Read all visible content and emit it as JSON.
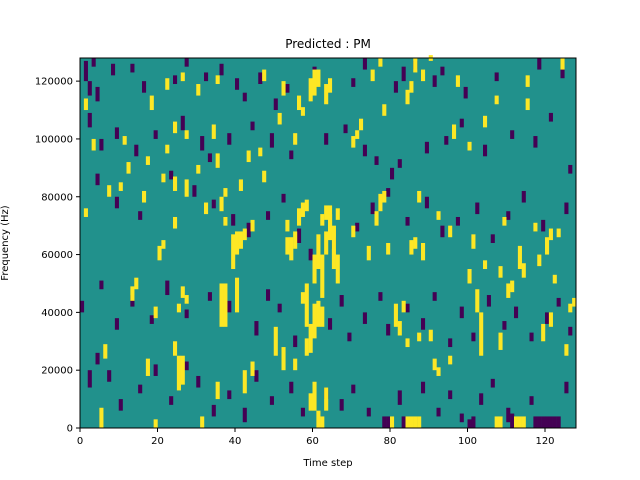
{
  "chart_data": {
    "type": "heatmap",
    "title": "Predicted : PM",
    "xlabel": "Time step",
    "ylabel": "Frequency (Hz)",
    "xlim": [
      0,
      128
    ],
    "ylim": [
      0,
      128000
    ],
    "xticks": [
      0,
      20,
      40,
      60,
      80,
      100,
      120
    ],
    "yticks": [
      0,
      20000,
      40000,
      60000,
      80000,
      100000,
      120000
    ],
    "grid_shape": [
      128,
      128
    ],
    "cell_size_hz": 1000,
    "colormap": "viridis",
    "value_range": [
      -1,
      1
    ],
    "colors": {
      "low": "#440154",
      "mid": "#21918c",
      "high": "#fde725"
    },
    "background_value": 0,
    "cells_high": [
      [
        5,
        0,
        7
      ],
      [
        19,
        0,
        3
      ],
      [
        31,
        0,
        4
      ],
      [
        61,
        0,
        6
      ],
      [
        62,
        0,
        4
      ],
      [
        80,
        0,
        4
      ],
      [
        84,
        0,
        4
      ],
      [
        85,
        0,
        4
      ],
      [
        86,
        0,
        4
      ],
      [
        87,
        0,
        4
      ],
      [
        107,
        0,
        4
      ],
      [
        108,
        0,
        4
      ],
      [
        112,
        0,
        4
      ],
      [
        113,
        0,
        4
      ],
      [
        114,
        0,
        4
      ],
      [
        59,
        6,
        6
      ],
      [
        60,
        6,
        10
      ],
      [
        63,
        6,
        8
      ],
      [
        35,
        10,
        6
      ],
      [
        42,
        12,
        8
      ],
      [
        25,
        13,
        12
      ],
      [
        26,
        15,
        10
      ],
      [
        52,
        20,
        8
      ],
      [
        55,
        20,
        4
      ],
      [
        44,
        18,
        5
      ],
      [
        6,
        24,
        5
      ],
      [
        17,
        18,
        6
      ],
      [
        50,
        25,
        10
      ],
      [
        58,
        25,
        6
      ],
      [
        59,
        26,
        10
      ],
      [
        60,
        31,
        12
      ],
      [
        61,
        35,
        9
      ],
      [
        62,
        35,
        7
      ],
      [
        87,
        30,
        3
      ],
      [
        103,
        25,
        15
      ],
      [
        108,
        27,
        6
      ],
      [
        125,
        25,
        4
      ],
      [
        126,
        40,
        3
      ],
      [
        127,
        42,
        3
      ],
      [
        36,
        35,
        15
      ],
      [
        37,
        35,
        15
      ],
      [
        40,
        40,
        12
      ],
      [
        24,
        25,
        5
      ],
      [
        25,
        40,
        3
      ],
      [
        26,
        45,
        4
      ],
      [
        27,
        43,
        3
      ],
      [
        57,
        43,
        4
      ],
      [
        58,
        35,
        15
      ],
      [
        60,
        50,
        10
      ],
      [
        61,
        55,
        12
      ],
      [
        62,
        45,
        15
      ],
      [
        63,
        60,
        8
      ],
      [
        64,
        65,
        12
      ],
      [
        65,
        55,
        15
      ],
      [
        66,
        50,
        10
      ],
      [
        39,
        55,
        12
      ],
      [
        40,
        60,
        8
      ],
      [
        41,
        62,
        6
      ],
      [
        53,
        60,
        6
      ],
      [
        54,
        58,
        8
      ],
      [
        55,
        62,
        6
      ],
      [
        42,
        65,
        4
      ],
      [
        102,
        40,
        8
      ],
      [
        110,
        45,
        5
      ],
      [
        113,
        55,
        8
      ],
      [
        114,
        52,
        5
      ],
      [
        111,
        47,
        4
      ],
      [
        119,
        30,
        6
      ],
      [
        121,
        35,
        5
      ],
      [
        81,
        35,
        8
      ],
      [
        82,
        32,
        5
      ],
      [
        83,
        40,
        4
      ],
      [
        84,
        28,
        3
      ],
      [
        90,
        30,
        4
      ],
      [
        91,
        20,
        4
      ],
      [
        92,
        18,
        3
      ],
      [
        95,
        22,
        3
      ],
      [
        100,
        50,
        5
      ],
      [
        104,
        55,
        3
      ],
      [
        108,
        52,
        4
      ],
      [
        120,
        60,
        6
      ],
      [
        121,
        65,
        4
      ],
      [
        122,
        50,
        3
      ],
      [
        62,
        70,
        4
      ],
      [
        63,
        72,
        5
      ],
      [
        64,
        68,
        6
      ],
      [
        76,
        70,
        5
      ],
      [
        77,
        75,
        6
      ],
      [
        78,
        78,
        4
      ],
      [
        87,
        78,
        4
      ],
      [
        92,
        72,
        3
      ],
      [
        109,
        70,
        3
      ],
      [
        117,
        68,
        3
      ],
      [
        7,
        80,
        4
      ],
      [
        10,
        82,
        3
      ],
      [
        16,
        78,
        4
      ],
      [
        21,
        85,
        3
      ],
      [
        24,
        82,
        5
      ],
      [
        27,
        80,
        6
      ],
      [
        36,
        75,
        5
      ],
      [
        37,
        80,
        3
      ],
      [
        41,
        82,
        4
      ],
      [
        47,
        85,
        4
      ],
      [
        53,
        68,
        4
      ],
      [
        56,
        70,
        6
      ],
      [
        57,
        73,
        5
      ],
      [
        58,
        75,
        4
      ],
      [
        85,
        60,
        5
      ],
      [
        86,
        62,
        4
      ],
      [
        88,
        58,
        6
      ],
      [
        3,
        96,
        4
      ],
      [
        11,
        98,
        3
      ],
      [
        24,
        102,
        4
      ],
      [
        27,
        100,
        3
      ],
      [
        34,
        100,
        5
      ],
      [
        51,
        105,
        4
      ],
      [
        56,
        110,
        5
      ],
      [
        57,
        108,
        3
      ],
      [
        59,
        113,
        8
      ],
      [
        60,
        115,
        9
      ],
      [
        61,
        118,
        6
      ],
      [
        63,
        112,
        7
      ],
      [
        64,
        116,
        5
      ],
      [
        70,
        97,
        4
      ],
      [
        71,
        100,
        3
      ],
      [
        72,
        103,
        4
      ],
      [
        78,
        108,
        4
      ],
      [
        84,
        112,
        5
      ],
      [
        85,
        116,
        4
      ],
      [
        88,
        120,
        4
      ],
      [
        96,
        100,
        5
      ],
      [
        100,
        96,
        3
      ],
      [
        104,
        104,
        4
      ],
      [
        115,
        110,
        4
      ],
      [
        1,
        110,
        4
      ],
      [
        18,
        110,
        5
      ],
      [
        22,
        117,
        4
      ],
      [
        26,
        120,
        3
      ],
      [
        30,
        115,
        4
      ],
      [
        35,
        119,
        3
      ],
      [
        47,
        120,
        4
      ],
      [
        52,
        115,
        5
      ],
      [
        75,
        120,
        4
      ],
      [
        77,
        125,
        3
      ],
      [
        86,
        123,
        5
      ],
      [
        90,
        127,
        2
      ],
      [
        97,
        118,
        4
      ],
      [
        107,
        112,
        3
      ],
      [
        115,
        118,
        4
      ],
      [
        124,
        124,
        4
      ],
      [
        1,
        73,
        3
      ],
      [
        12,
        88,
        4
      ],
      [
        17,
        91,
        3
      ],
      [
        22,
        95,
        3
      ],
      [
        30,
        88,
        3
      ],
      [
        35,
        90,
        5
      ],
      [
        43,
        92,
        4
      ],
      [
        46,
        94,
        3
      ],
      [
        55,
        98,
        4
      ],
      [
        13,
        44,
        5
      ],
      [
        14,
        48,
        4
      ],
      [
        19,
        38,
        4
      ],
      [
        20,
        58,
        5
      ],
      [
        21,
        62,
        3
      ],
      [
        24,
        69,
        4
      ],
      [
        32,
        74,
        4
      ],
      [
        37,
        70,
        3
      ],
      [
        44,
        68,
        4
      ],
      [
        66,
        72,
        4
      ],
      [
        70,
        66,
        4
      ],
      [
        74,
        58,
        5
      ],
      [
        79,
        60,
        4
      ],
      [
        95,
        66,
        4
      ],
      [
        101,
        62,
        5
      ],
      [
        118,
        56,
        4
      ],
      [
        123,
        66,
        3
      ]
    ],
    "cells_low": [
      [
        1,
        120,
        7
      ],
      [
        2,
        115,
        5
      ],
      [
        3,
        125,
        3
      ],
      [
        4,
        113,
        5
      ],
      [
        8,
        122,
        4
      ],
      [
        13,
        123,
        3
      ],
      [
        16,
        116,
        4
      ],
      [
        24,
        119,
        3
      ],
      [
        27,
        125,
        3
      ],
      [
        32,
        120,
        3
      ],
      [
        36,
        122,
        4
      ],
      [
        40,
        117,
        4
      ],
      [
        42,
        113,
        3
      ],
      [
        46,
        119,
        4
      ],
      [
        50,
        110,
        4
      ],
      [
        53,
        116,
        3
      ],
      [
        60,
        121,
        4
      ],
      [
        70,
        118,
        3
      ],
      [
        73,
        124,
        4
      ],
      [
        81,
        116,
        4
      ],
      [
        83,
        120,
        5
      ],
      [
        86,
        124,
        3
      ],
      [
        91,
        118,
        4
      ],
      [
        93,
        122,
        3
      ],
      [
        99,
        114,
        4
      ],
      [
        107,
        120,
        3
      ],
      [
        118,
        124,
        4
      ],
      [
        124,
        121,
        3
      ],
      [
        2,
        104,
        5
      ],
      [
        5,
        96,
        4
      ],
      [
        9,
        100,
        4
      ],
      [
        14,
        94,
        4
      ],
      [
        19,
        100,
        3
      ],
      [
        26,
        103,
        5
      ],
      [
        31,
        96,
        5
      ],
      [
        33,
        92,
        3
      ],
      [
        38,
        98,
        4
      ],
      [
        44,
        103,
        3
      ],
      [
        49,
        97,
        5
      ],
      [
        54,
        93,
        3
      ],
      [
        63,
        98,
        4
      ],
      [
        68,
        102,
        3
      ],
      [
        73,
        94,
        4
      ],
      [
        76,
        91,
        3
      ],
      [
        80,
        86,
        4
      ],
      [
        82,
        90,
        3
      ],
      [
        89,
        95,
        4
      ],
      [
        94,
        98,
        3
      ],
      [
        98,
        104,
        3
      ],
      [
        104,
        94,
        4
      ],
      [
        111,
        100,
        3
      ],
      [
        117,
        97,
        4
      ],
      [
        121,
        106,
        3
      ],
      [
        126,
        88,
        3
      ],
      [
        4,
        84,
        4
      ],
      [
        9,
        76,
        4
      ],
      [
        15,
        72,
        3
      ],
      [
        23,
        86,
        3
      ],
      [
        29,
        80,
        4
      ],
      [
        34,
        76,
        3
      ],
      [
        39,
        70,
        4
      ],
      [
        43,
        66,
        5
      ],
      [
        48,
        72,
        3
      ],
      [
        52,
        78,
        3
      ],
      [
        56,
        64,
        5
      ],
      [
        59,
        58,
        4
      ],
      [
        65,
        62,
        4
      ],
      [
        71,
        68,
        3
      ],
      [
        75,
        74,
        4
      ],
      [
        79,
        80,
        3
      ],
      [
        84,
        70,
        3
      ],
      [
        89,
        76,
        4
      ],
      [
        93,
        66,
        4
      ],
      [
        97,
        70,
        3
      ],
      [
        102,
        74,
        4
      ],
      [
        106,
        64,
        3
      ],
      [
        110,
        72,
        3
      ],
      [
        114,
        78,
        4
      ],
      [
        119,
        68,
        4
      ],
      [
        125,
        74,
        4
      ],
      [
        0,
        40,
        4
      ],
      [
        5,
        48,
        3
      ],
      [
        9,
        34,
        4
      ],
      [
        13,
        42,
        4
      ],
      [
        18,
        36,
        3
      ],
      [
        22,
        46,
        5
      ],
      [
        27,
        38,
        3
      ],
      [
        33,
        44,
        3
      ],
      [
        38,
        40,
        4
      ],
      [
        45,
        32,
        5
      ],
      [
        48,
        44,
        4
      ],
      [
        51,
        40,
        3
      ],
      [
        55,
        28,
        4
      ],
      [
        64,
        34,
        4
      ],
      [
        67,
        42,
        4
      ],
      [
        69,
        30,
        3
      ],
      [
        73,
        36,
        4
      ],
      [
        77,
        44,
        3
      ],
      [
        79,
        32,
        4
      ],
      [
        84,
        40,
        3
      ],
      [
        88,
        34,
        4
      ],
      [
        91,
        44,
        3
      ],
      [
        95,
        28,
        3
      ],
      [
        98,
        38,
        4
      ],
      [
        101,
        30,
        3
      ],
      [
        105,
        42,
        4
      ],
      [
        109,
        34,
        3
      ],
      [
        112,
        38,
        4
      ],
      [
        116,
        30,
        3
      ],
      [
        120,
        36,
        4
      ],
      [
        123,
        42,
        3
      ],
      [
        126,
        32,
        3
      ],
      [
        2,
        14,
        6
      ],
      [
        4,
        22,
        4
      ],
      [
        7,
        16,
        4
      ],
      [
        10,
        6,
        4
      ],
      [
        15,
        12,
        3
      ],
      [
        19,
        18,
        4
      ],
      [
        23,
        8,
        3
      ],
      [
        27,
        20,
        3
      ],
      [
        30,
        14,
        4
      ],
      [
        34,
        4,
        4
      ],
      [
        38,
        10,
        3
      ],
      [
        42,
        2,
        5
      ],
      [
        45,
        16,
        4
      ],
      [
        49,
        8,
        3
      ],
      [
        54,
        12,
        4
      ],
      [
        57,
        4,
        3
      ],
      [
        63,
        10,
        4
      ],
      [
        67,
        6,
        4
      ],
      [
        70,
        12,
        3
      ],
      [
        74,
        4,
        3
      ],
      [
        78,
        0,
        4
      ],
      [
        79,
        0,
        4
      ],
      [
        82,
        8,
        5
      ],
      [
        83,
        0,
        4
      ],
      [
        88,
        12,
        4
      ],
      [
        92,
        4,
        3
      ],
      [
        95,
        10,
        3
      ],
      [
        98,
        2,
        3
      ],
      [
        100,
        0,
        3
      ],
      [
        101,
        0,
        4
      ],
      [
        103,
        8,
        4
      ],
      [
        106,
        14,
        3
      ],
      [
        110,
        2,
        5
      ],
      [
        111,
        0,
        5
      ],
      [
        116,
        8,
        3
      ],
      [
        117,
        0,
        4
      ],
      [
        118,
        0,
        4
      ],
      [
        119,
        0,
        4
      ],
      [
        120,
        0,
        4
      ],
      [
        121,
        0,
        4
      ],
      [
        122,
        0,
        4
      ],
      [
        123,
        0,
        4
      ],
      [
        125,
        12,
        4
      ]
    ]
  }
}
